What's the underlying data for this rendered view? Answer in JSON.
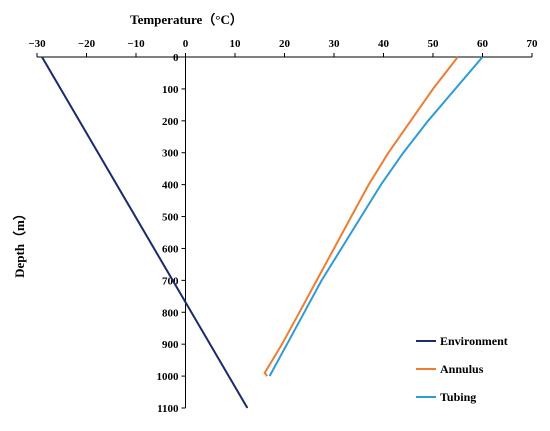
{
  "chart_data": {
    "type": "line",
    "xlabel": "Temperature（°C）",
    "ylabel": "Depth（m）",
    "xlim": [
      -30,
      70
    ],
    "ylim": [
      0,
      1100
    ],
    "x_axis_position": "top",
    "y_axis_inverted": true,
    "y_axis_crosses_x": 0,
    "x_ticks": [
      -30,
      -20,
      -10,
      0,
      10,
      20,
      30,
      40,
      50,
      60,
      70
    ],
    "y_ticks": [
      0,
      100,
      200,
      300,
      400,
      500,
      600,
      700,
      800,
      900,
      1000,
      1100
    ],
    "grid": false,
    "legend_position": "bottom-right",
    "series": [
      {
        "name": "Environment",
        "color": "#1b2a6b",
        "points": [
          [
            -29.0,
            0
          ],
          [
            12.5,
            1100
          ]
        ]
      },
      {
        "name": "Annulus",
        "color": "#ed7d31",
        "points": [
          [
            55.0,
            0
          ],
          [
            50.0,
            100
          ],
          [
            45.5,
            200
          ],
          [
            41.0,
            300
          ],
          [
            37.0,
            400
          ],
          [
            33.5,
            500
          ],
          [
            30.0,
            600
          ],
          [
            26.5,
            700
          ],
          [
            23.0,
            800
          ],
          [
            19.5,
            900
          ],
          [
            16.0,
            990
          ],
          [
            16.5,
            1000
          ]
        ]
      },
      {
        "name": "Tubing",
        "color": "#2e9bd6",
        "points": [
          [
            60.0,
            0
          ],
          [
            54.5,
            100
          ],
          [
            49.0,
            200
          ],
          [
            44.0,
            300
          ],
          [
            39.5,
            400
          ],
          [
            35.5,
            500
          ],
          [
            31.5,
            600
          ],
          [
            27.5,
            700
          ],
          [
            24.0,
            800
          ],
          [
            20.5,
            900
          ],
          [
            17.0,
            1000
          ]
        ]
      }
    ]
  }
}
